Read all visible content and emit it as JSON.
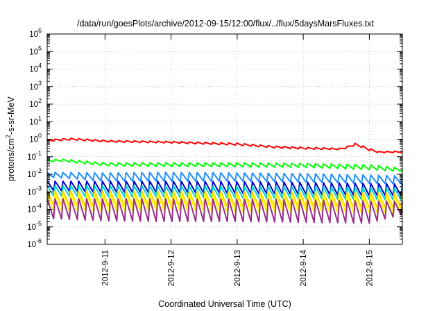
{
  "chart_data": {
    "type": "line",
    "title": "/data/run/goesPlots/archive/2012-09-15/12:00/flux/../flux/5daysMarsFluxes.txt",
    "xlabel": "Coordinated Universal Time (UTC)",
    "ylabel": {
      "pre": "protons/cm",
      "sup": "2",
      "post": "-s-sr-MeV"
    },
    "yscale": "log",
    "ylim": [
      1e-06,
      1000000.0
    ],
    "y_ticks": [
      {
        "base": "10",
        "exp": "-6",
        "value": 1e-06
      },
      {
        "base": "10",
        "exp": "-5",
        "value": 1e-05
      },
      {
        "base": "10",
        "exp": "-4",
        "value": 0.0001
      },
      {
        "base": "10",
        "exp": "-3",
        "value": 0.001
      },
      {
        "base": "10",
        "exp": "-2",
        "value": 0.01
      },
      {
        "base": "10",
        "exp": "-1",
        "value": 0.1
      },
      {
        "base": "10",
        "exp": "0",
        "value": 1
      },
      {
        "base": "10",
        "exp": "1",
        "value": 10
      },
      {
        "base": "10",
        "exp": "2",
        "value": 100
      },
      {
        "base": "10",
        "exp": "3",
        "value": 1000
      },
      {
        "base": "10",
        "exp": "4",
        "value": 10000
      },
      {
        "base": "10",
        "exp": "5",
        "value": 100000
      },
      {
        "base": "10",
        "exp": "6",
        "value": 1000000
      }
    ],
    "xlim": [
      "2012-09-10T03:00",
      "2012-09-15T12:00"
    ],
    "x_ticks": [
      {
        "label": "2012-9-11",
        "value": "2012-09-11T00:00"
      },
      {
        "label": "2012-9-12",
        "value": "2012-09-12T00:00"
      },
      {
        "label": "2012-9-13",
        "value": "2012-09-13T00:00"
      },
      {
        "label": "2012-9-14",
        "value": "2012-09-14T00:00"
      },
      {
        "label": "2012-9-15",
        "value": "2012-09-15T00:00"
      }
    ],
    "grid": true,
    "series": [
      {
        "color": "#ff0000",
        "sawtooth_cycles": 45,
        "profile": [
          [
            "2012-09-10T03:00",
            0.95,
            0.75
          ],
          [
            "2012-09-10T12:00",
            1.15,
            0.9
          ],
          [
            "2012-09-11T00:00",
            0.85,
            0.7
          ],
          [
            "2012-09-12T00:00",
            0.75,
            0.6
          ],
          [
            "2012-09-13T00:00",
            0.6,
            0.45
          ],
          [
            "2012-09-13T12:00",
            0.42,
            0.33
          ],
          [
            "2012-09-14T00:00",
            0.35,
            0.27
          ],
          [
            "2012-09-14T14:00",
            0.3,
            0.25
          ],
          [
            "2012-09-14T19:00",
            0.6,
            0.45
          ],
          [
            "2012-09-15T00:00",
            0.3,
            0.22
          ],
          [
            "2012-09-15T03:00",
            0.2,
            0.17
          ],
          [
            "2012-09-15T12:00",
            0.21,
            0.17
          ]
        ]
      },
      {
        "color": "#00ff00",
        "sawtooth_cycles": 45,
        "profile": [
          [
            "2012-09-10T03:00",
            0.065,
            0.05
          ],
          [
            "2012-09-10T08:00",
            0.075,
            0.055
          ],
          [
            "2012-09-11T00:00",
            0.045,
            0.03
          ],
          [
            "2012-09-12T00:00",
            0.045,
            0.028
          ],
          [
            "2012-09-13T00:00",
            0.045,
            0.026
          ],
          [
            "2012-09-14T00:00",
            0.042,
            0.025
          ],
          [
            "2012-09-15T00:00",
            0.035,
            0.018
          ],
          [
            "2012-09-15T12:00",
            0.022,
            0.014
          ]
        ]
      },
      {
        "color": "#1e90ff",
        "sawtooth_cycles": 45,
        "profile": [
          [
            "2012-09-10T03:00",
            0.013,
            0.007
          ],
          [
            "2012-09-11T00:00",
            0.012,
            0.004
          ],
          [
            "2012-09-12T00:00",
            0.013,
            0.004
          ],
          [
            "2012-09-13T00:00",
            0.012,
            0.004
          ],
          [
            "2012-09-14T00:00",
            0.011,
            0.0035
          ],
          [
            "2012-09-15T00:00",
            0.009,
            0.003
          ],
          [
            "2012-09-15T12:00",
            0.008,
            0.0028
          ]
        ]
      },
      {
        "color": "#0000cd",
        "sawtooth_cycles": 45,
        "profile": [
          [
            "2012-09-10T03:00",
            0.004,
            0.0012
          ],
          [
            "2012-09-11T00:00",
            0.004,
            0.0009
          ],
          [
            "2012-09-12T00:00",
            0.004,
            0.0009
          ],
          [
            "2012-09-13T00:00",
            0.0038,
            0.0008
          ],
          [
            "2012-09-14T00:00",
            0.0035,
            0.0007
          ],
          [
            "2012-09-15T00:00",
            0.003,
            0.0006
          ],
          [
            "2012-09-15T12:00",
            0.0028,
            0.0006
          ]
        ]
      },
      {
        "color": "#00ced1",
        "sawtooth_cycles": 45,
        "profile": [
          [
            "2012-09-10T03:00",
            0.0022,
            0.0006
          ],
          [
            "2012-09-11T00:00",
            0.0022,
            0.0005
          ],
          [
            "2012-09-12T00:00",
            0.0022,
            0.0005
          ],
          [
            "2012-09-13T00:00",
            0.002,
            0.00045
          ],
          [
            "2012-09-14T00:00",
            0.002,
            0.0004
          ],
          [
            "2012-09-15T00:00",
            0.0017,
            0.00035
          ],
          [
            "2012-09-15T12:00",
            0.0016,
            0.00035
          ]
        ]
      },
      {
        "color": "#ffd700",
        "sawtooth_cycles": 45,
        "profile": [
          [
            "2012-09-10T03:00",
            0.0011,
            0.00018
          ],
          [
            "2012-09-11T00:00",
            0.0011,
            0.00015
          ],
          [
            "2012-09-12T00:00",
            0.0011,
            0.00015
          ],
          [
            "2012-09-13T00:00",
            0.001,
            0.00014
          ],
          [
            "2012-09-14T00:00",
            0.001,
            0.00013
          ],
          [
            "2012-09-15T00:00",
            0.0009,
            0.00012
          ],
          [
            "2012-09-15T12:00",
            0.0008,
            0.00012
          ]
        ]
      },
      {
        "color": "#ffff00",
        "sawtooth_cycles": 45,
        "profile": [
          [
            "2012-09-10T03:00",
            0.0007,
            9e-05
          ],
          [
            "2012-09-11T00:00",
            0.0007,
            8e-05
          ],
          [
            "2012-09-12T00:00",
            0.0007,
            8e-05
          ],
          [
            "2012-09-13T00:00",
            0.00065,
            7e-05
          ],
          [
            "2012-09-14T00:00",
            0.0006,
            7e-05
          ],
          [
            "2012-09-15T00:00",
            0.00055,
            6e-05
          ],
          [
            "2012-09-15T12:00",
            0.0005,
            6e-05
          ]
        ]
      },
      {
        "color": "#9b2d8a",
        "sawtooth_cycles": 45,
        "profile": [
          [
            "2012-09-10T03:00",
            0.0004,
            3e-05
          ],
          [
            "2012-09-11T00:00",
            0.0004,
            2.2e-05
          ],
          [
            "2012-09-12T00:00",
            0.0004,
            2e-05
          ],
          [
            "2012-09-13T00:00",
            0.00038,
            2e-05
          ],
          [
            "2012-09-14T00:00",
            0.00035,
            1.8e-05
          ],
          [
            "2012-09-15T00:00",
            0.0003,
            1.6e-05
          ],
          [
            "2012-09-15T12:00",
            0.00028,
            5e-05
          ]
        ]
      }
    ]
  }
}
